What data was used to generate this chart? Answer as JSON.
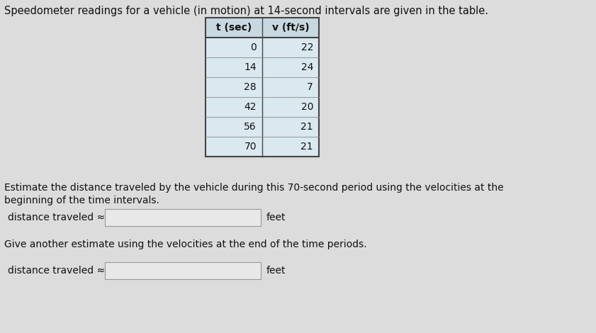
{
  "title": "Speedometer readings for a vehicle (in motion) at 14-second intervals are given in the table.",
  "table_headers": [
    "t (sec)",
    "v (ft/s)"
  ],
  "table_data": [
    [
      0,
      22
    ],
    [
      14,
      24
    ],
    [
      28,
      7
    ],
    [
      42,
      20
    ],
    [
      56,
      21
    ],
    [
      70,
      21
    ]
  ],
  "paragraph1_line1": "Estimate the distance traveled by the vehicle during this 70-second period using the velocities at the",
  "paragraph1_line2": "beginning of the time intervals.",
  "label1": "distance traveled ≈",
  "units1": "feet",
  "paragraph2": "Give another estimate using the velocities at the end of the time periods.",
  "label2": "distance traveled ≈",
  "units2": "feet",
  "bg_color": "#dcdcdc",
  "table_row_color": "#dae8f0",
  "table_header_color": "#c8d8e0",
  "text_color": "#111111",
  "border_color": "#444444",
  "inner_line_color": "#888888",
  "input_box_color": "#e8e8e8",
  "font_size_title": 10.5,
  "font_size_body": 10,
  "font_size_table": 10
}
